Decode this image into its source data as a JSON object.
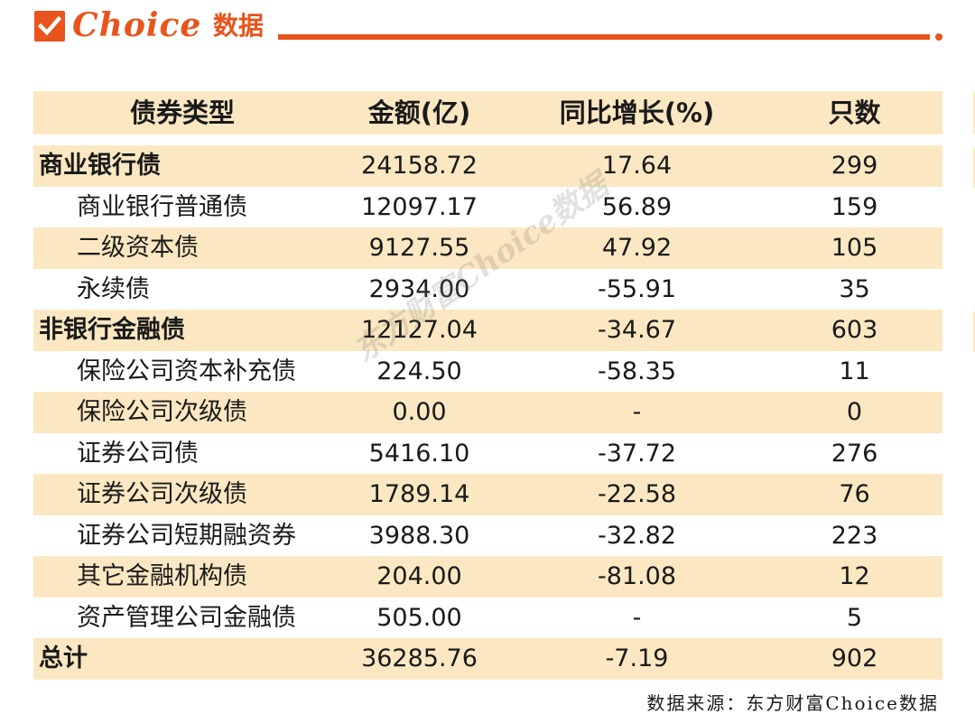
{
  "logo": {
    "brand": "Choice",
    "suffix": "数据"
  },
  "table": {
    "headers": [
      "债券类型",
      "金额(亿)",
      "同比增长(%)",
      "只数"
    ],
    "rows": [
      {
        "name": "商业银行债",
        "amount": "24158.72",
        "yoy": "17.64",
        "count": "299",
        "level": 0
      },
      {
        "name": "商业银行普通债",
        "amount": "12097.17",
        "yoy": "56.89",
        "count": "159",
        "level": 1
      },
      {
        "name": "二级资本债",
        "amount": "9127.55",
        "yoy": "47.92",
        "count": "105",
        "level": 1
      },
      {
        "name": "永续债",
        "amount": "2934.00",
        "yoy": "-55.91",
        "count": "35",
        "level": 1
      },
      {
        "name": "非银行金融债",
        "amount": "12127.04",
        "yoy": "-34.67",
        "count": "603",
        "level": 0
      },
      {
        "name": "保险公司资本补充债",
        "amount": "224.50",
        "yoy": "-58.35",
        "count": "11",
        "level": 1
      },
      {
        "name": "保险公司次级债",
        "amount": "0.00",
        "yoy": "-",
        "count": "0",
        "level": 1
      },
      {
        "name": "证券公司债",
        "amount": "5416.10",
        "yoy": "-37.72",
        "count": "276",
        "level": 1
      },
      {
        "name": "证券公司次级债",
        "amount": "1789.14",
        "yoy": "-22.58",
        "count": "76",
        "level": 1
      },
      {
        "name": "证券公司短期融资券",
        "amount": "3988.30",
        "yoy": "-32.82",
        "count": "223",
        "level": 1
      },
      {
        "name": "其它金融机构债",
        "amount": "204.00",
        "yoy": "-81.08",
        "count": "12",
        "level": 1
      },
      {
        "name": "资产管理公司金融债",
        "amount": "505.00",
        "yoy": "-",
        "count": "5",
        "level": 1
      },
      {
        "name": "总计",
        "amount": "36285.76",
        "yoy": "-7.19",
        "count": "902",
        "level": 0
      }
    ]
  },
  "watermark": "东方财富Choice数据",
  "source": "数据来源：东方财富Choice数据",
  "colors": {
    "accent": "#e8541c",
    "stripe": "#fbe8c2"
  }
}
